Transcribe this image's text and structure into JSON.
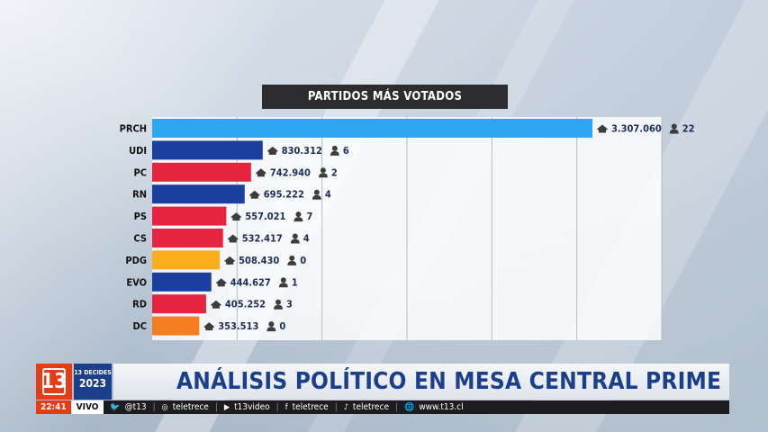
{
  "chart_data": {
    "type": "bar",
    "title": "PARTIDOS MÁS VOTADOS",
    "categories": [
      "PRCH",
      "UDI",
      "PC",
      "RN",
      "PS",
      "CS",
      "PDG",
      "EVO",
      "RD",
      "DC"
    ],
    "values": [
      3307060,
      830312,
      742940,
      695222,
      557021,
      532417,
      508430,
      444627,
      405252,
      353513
    ],
    "value_labels": [
      "3.307.060",
      "830.312",
      "742.940",
      "695.222",
      "557.021",
      "532.417",
      "508.430",
      "444.627",
      "405.252",
      "353.513"
    ],
    "seats": [
      "22",
      "6",
      "2",
      "4",
      "7",
      "4",
      "0",
      "1",
      "3",
      "0"
    ],
    "bar_colors": [
      "#2da7f2",
      "#1b3fa0",
      "#e5253f",
      "#1b3fa0",
      "#e5253f",
      "#e5253f",
      "#fbae1d",
      "#1b3fa0",
      "#e5253f",
      "#f57f20"
    ],
    "orientation": "horizontal",
    "grid": true,
    "icons": [
      "ballot-box-icon",
      "person-icon"
    ]
  },
  "lower_third": {
    "channel_logo": "13",
    "event_line1": "13 DECIDES",
    "event_line2": "2023",
    "headline": "ANÁLISIS POLÍTICO EN MESA CENTRAL PRIME",
    "time": "22:41",
    "live": "VIVO",
    "ticker": [
      {
        "icon": "twitter-icon",
        "text": "@t13"
      },
      {
        "icon": "instagram-icon",
        "text": "teletrece"
      },
      {
        "icon": "youtube-icon",
        "text": "t13video"
      },
      {
        "icon": "facebook-icon",
        "text": "teletrece"
      },
      {
        "icon": "tiktok-icon",
        "text": "teletrece"
      },
      {
        "icon": "web-icon",
        "text": "www.t13.cl"
      }
    ]
  }
}
